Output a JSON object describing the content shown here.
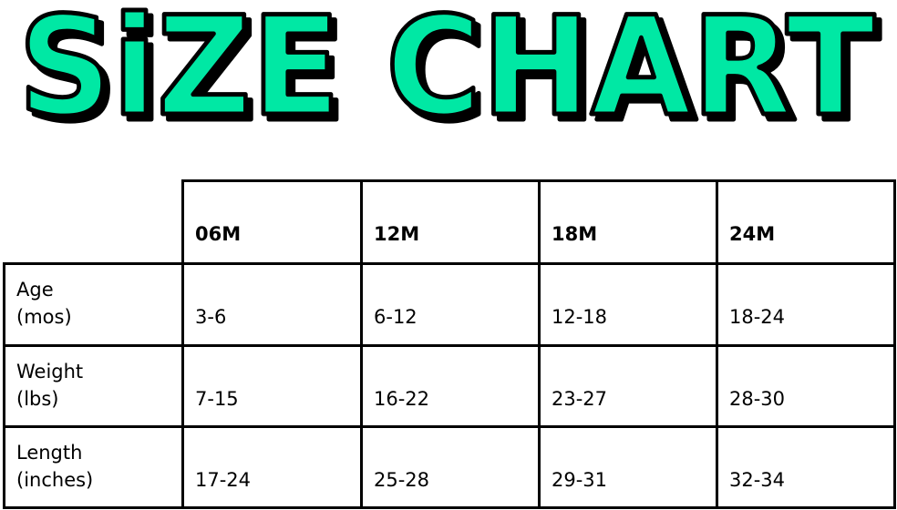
{
  "title": "SiZE CHART",
  "colors": {
    "title_fill": "#00E8A4",
    "title_outline": "#000000",
    "grid": "#000000"
  },
  "table": {
    "columns": [
      "06M",
      "12M",
      "18M",
      "24M"
    ],
    "rows": [
      {
        "label_line1": "Age",
        "label_line2": "(mos)",
        "values": [
          "3-6",
          "6-12",
          "12-18",
          "18-24"
        ]
      },
      {
        "label_line1": "Weight",
        "label_line2": "(lbs)",
        "values": [
          "7-15",
          "16-22",
          "23-27",
          "28-30"
        ]
      },
      {
        "label_line1": "Length",
        "label_line2": "(inches)",
        "values": [
          "17-24",
          "25-28",
          "29-31",
          "32-34"
        ]
      }
    ]
  }
}
